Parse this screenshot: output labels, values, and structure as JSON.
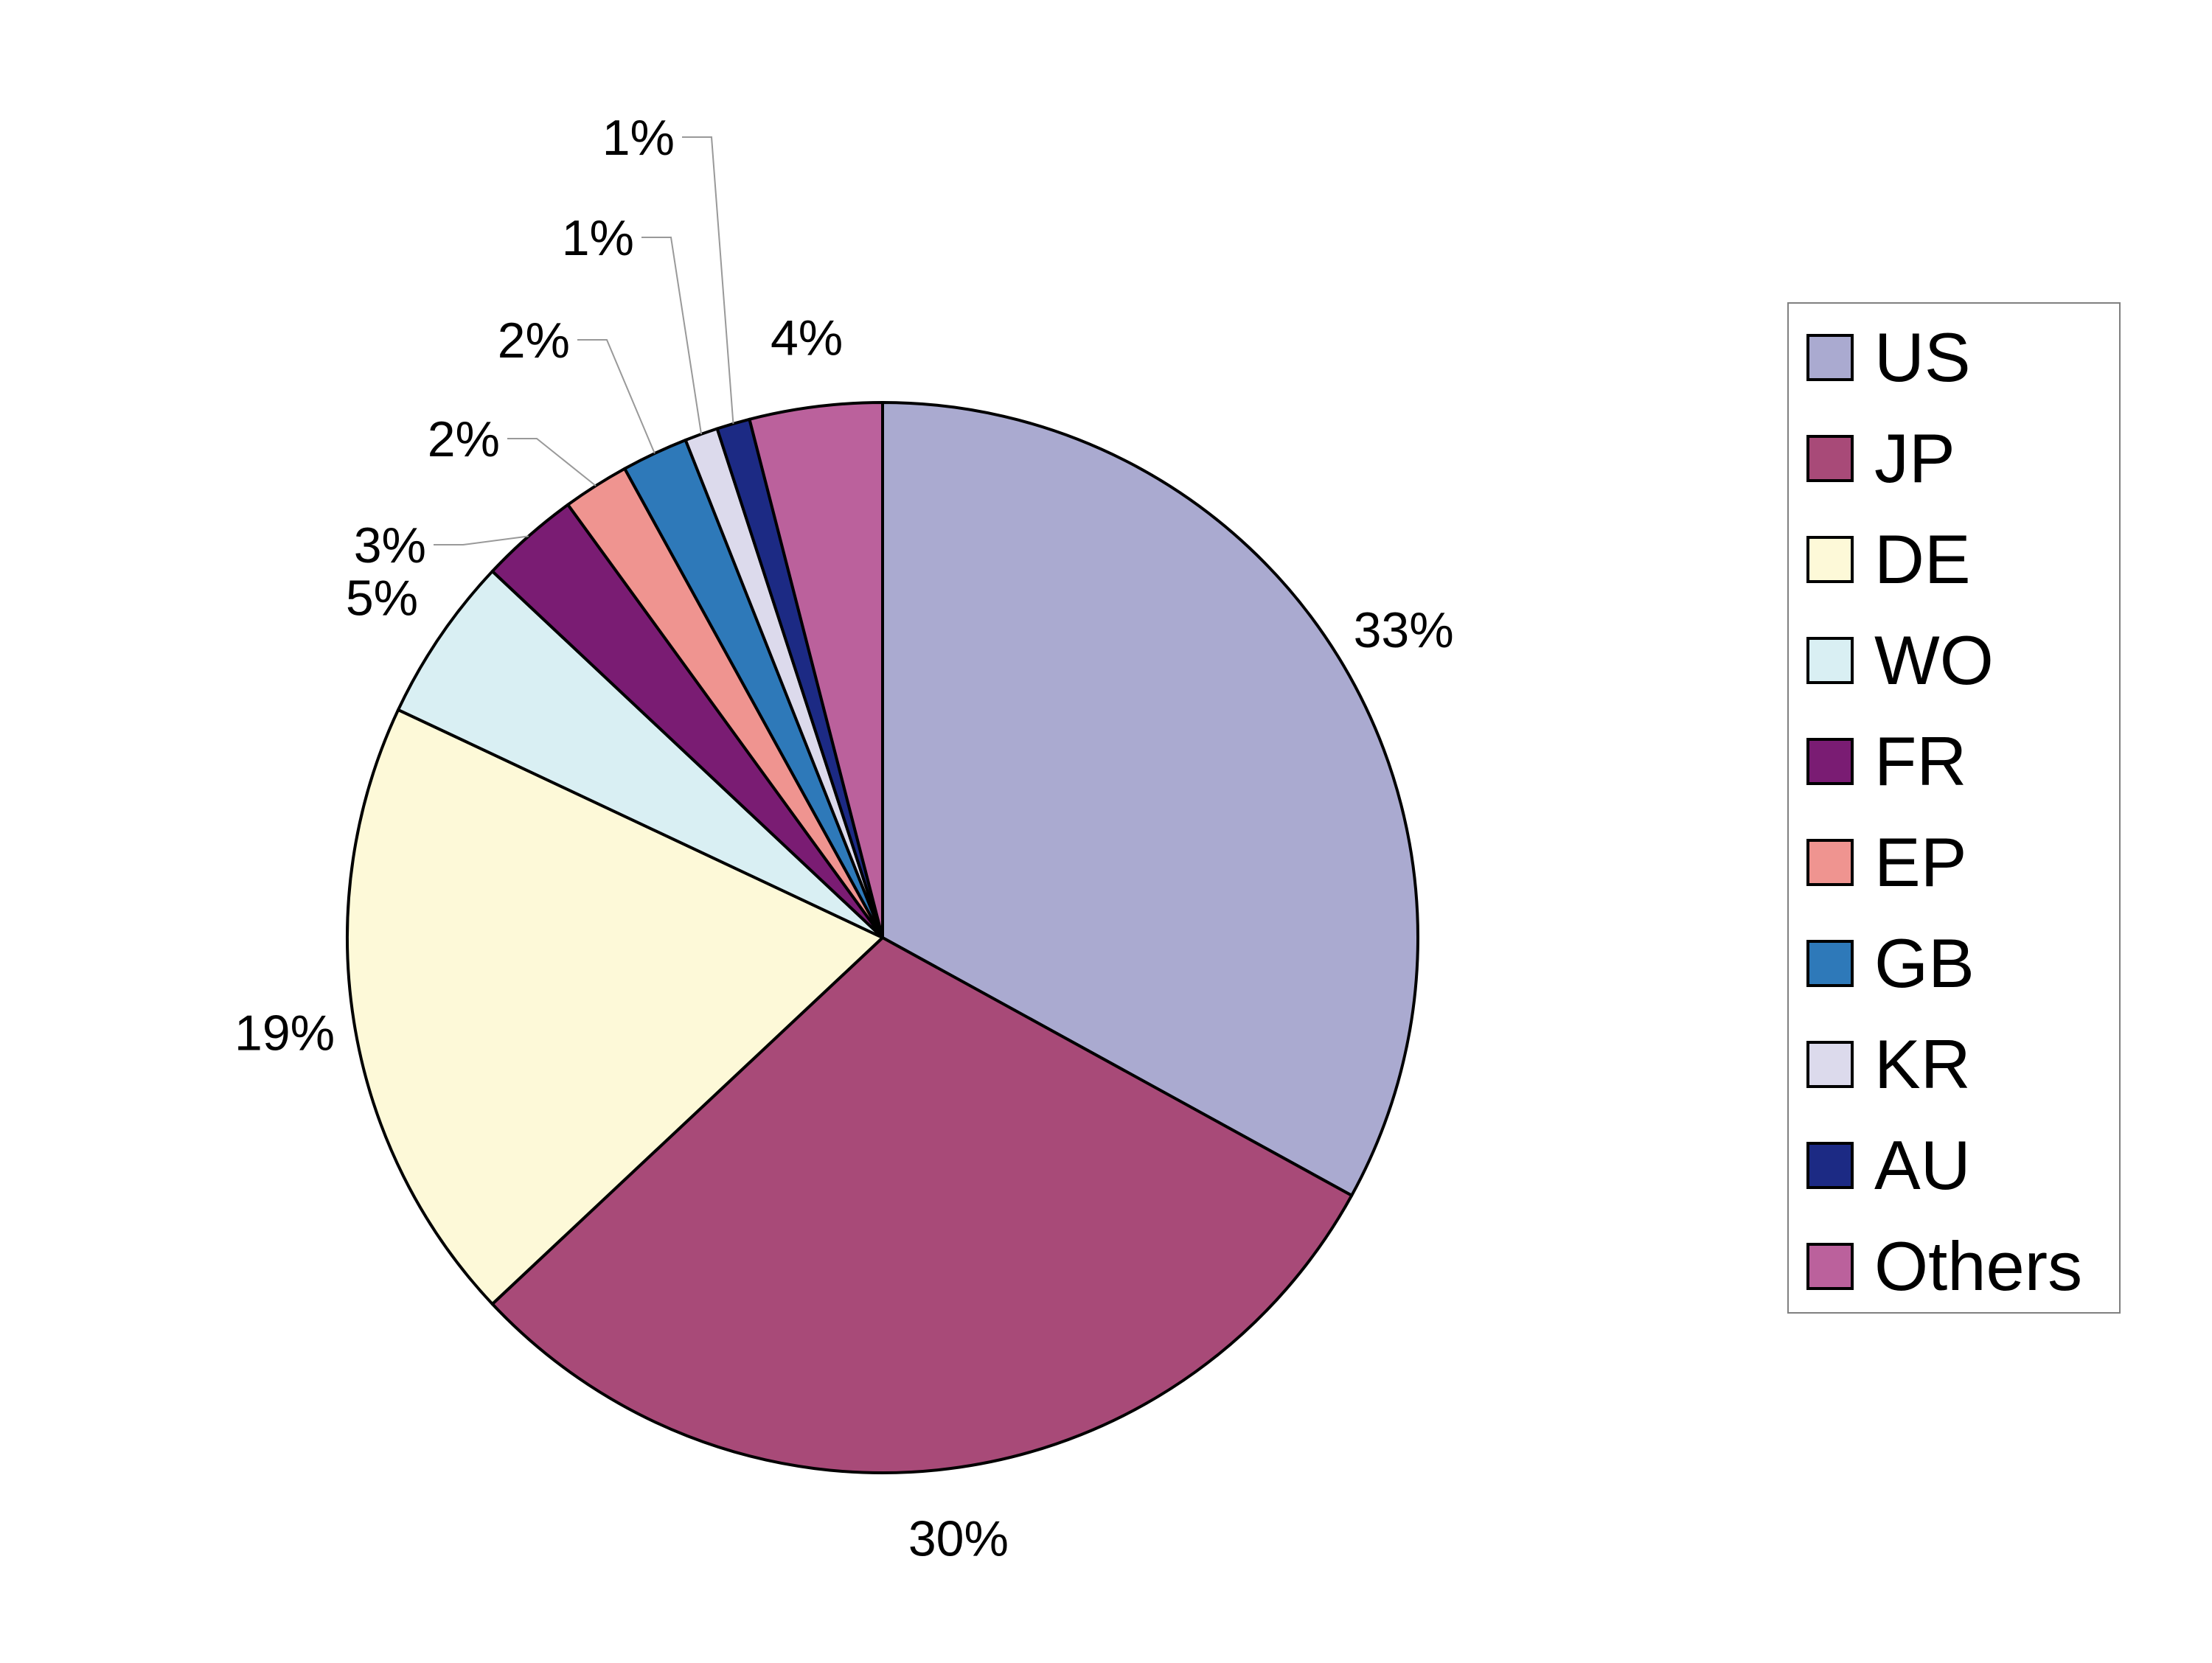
{
  "chart_data": {
    "type": "pie",
    "slices": [
      {
        "label": "US",
        "value": 33,
        "value_label": "33%",
        "color": "#aaaad0"
      },
      {
        "label": "JP",
        "value": 30,
        "value_label": "30%",
        "color": "#a84a78"
      },
      {
        "label": "DE",
        "value": 19,
        "value_label": "19%",
        "color": "#fdf9d8"
      },
      {
        "label": "WO",
        "value": 5,
        "value_label": "5%",
        "color": "#d9eff3"
      },
      {
        "label": "FR",
        "value": 3,
        "value_label": "3%",
        "color": "#7a1c73"
      },
      {
        "label": "EP",
        "value": 2,
        "value_label": "2%",
        "color": "#ef9490"
      },
      {
        "label": "GB",
        "value": 2,
        "value_label": "2%",
        "color": "#2e79b9"
      },
      {
        "label": "KR",
        "value": 1,
        "value_label": "1%",
        "color": "#dcdaec"
      },
      {
        "label": "AU",
        "value": 1,
        "value_label": "1%",
        "color": "#1c2a84"
      },
      {
        "label": "Others",
        "value": 4,
        "value_label": "4%",
        "color": "#bb619c"
      }
    ],
    "start_angle": "12 o'clock",
    "direction": "clockwise",
    "legend_position": "right"
  }
}
